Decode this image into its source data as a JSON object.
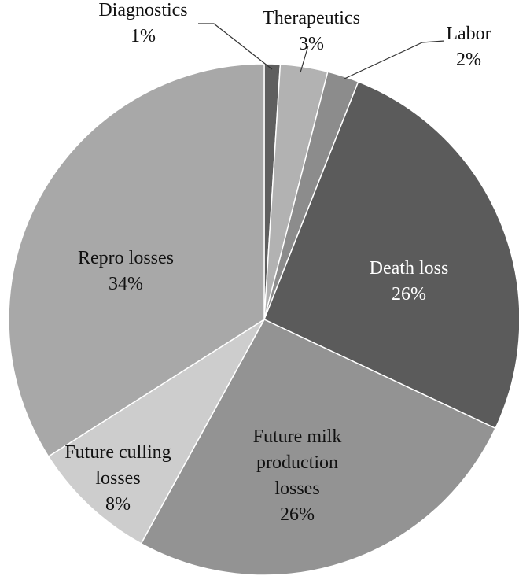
{
  "chart_data": {
    "type": "pie",
    "slices": [
      {
        "label_lines": [
          "Diagnostics",
          "1%"
        ],
        "value": 1,
        "color": "#5f5f5f"
      },
      {
        "label_lines": [
          "Therapeutics",
          "3%"
        ],
        "value": 3,
        "color": "#b2b2b2"
      },
      {
        "label_lines": [
          "Labor",
          "2%"
        ],
        "value": 2,
        "color": "#8c8c8c"
      },
      {
        "label_lines": [
          "Death loss",
          "26%"
        ],
        "value": 26,
        "color": "#5b5b5b"
      },
      {
        "label_lines": [
          "Future milk",
          "production",
          "losses",
          "26%"
        ],
        "value": 26,
        "color": "#939393"
      },
      {
        "label_lines": [
          "Future culling",
          "losses",
          "8%"
        ],
        "value": 8,
        "color": "#cdcdcd"
      },
      {
        "label_lines": [
          "Repro losses",
          "34%"
        ],
        "value": 34,
        "color": "#a8a8a8"
      }
    ]
  }
}
